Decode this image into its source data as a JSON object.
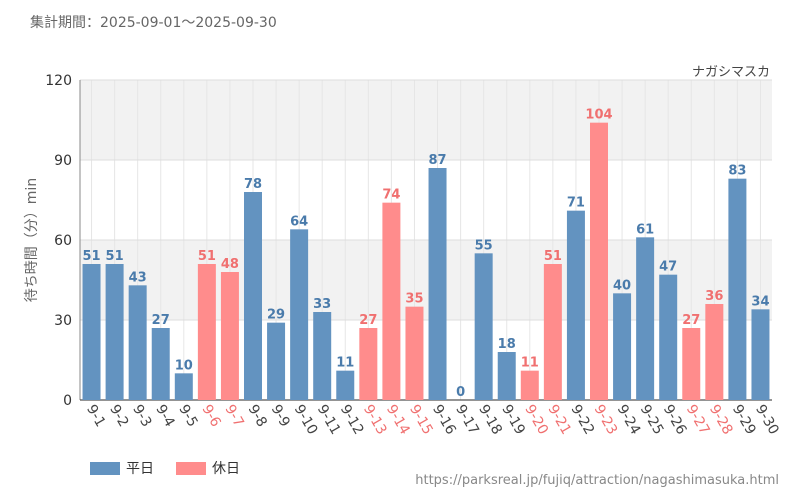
{
  "header": {
    "period": "集計期間：2025-09-01～2025-09-30",
    "attraction": "ナガシマスカ"
  },
  "footer": {
    "url": "https://parksreal.jp/fujiq/attraction/nagashimasuka.html"
  },
  "colors": {
    "weekday": "#6393c0",
    "holiday": "#ff8c8c",
    "weekday_label": "#4a7bab",
    "holiday_label": "#f07070"
  },
  "chart_data": {
    "type": "bar",
    "title": "",
    "xlabel": "",
    "ylabel": "待ち時間（分）min",
    "ylim": [
      0,
      120
    ],
    "yticks": [
      "0",
      "30",
      "60",
      "90",
      "120"
    ],
    "categories": [
      "9-1",
      "9-2",
      "9-3",
      "9-4",
      "9-5",
      "9-6",
      "9-7",
      "9-8",
      "9-9",
      "9-10",
      "9-11",
      "9-12",
      "9-13",
      "9-14",
      "9-15",
      "9-16",
      "9-17",
      "9-18",
      "9-19",
      "9-20",
      "9-21",
      "9-22",
      "9-23",
      "9-24",
      "9-25",
      "9-26",
      "9-27",
      "9-28",
      "9-29",
      "9-30"
    ],
    "values": [
      51,
      51,
      43,
      27,
      10,
      51,
      48,
      78,
      29,
      64,
      33,
      11,
      27,
      74,
      35,
      87,
      0,
      55,
      18,
      11,
      51,
      71,
      104,
      40,
      61,
      47,
      27,
      36,
      83,
      34
    ],
    "holiday": [
      false,
      false,
      false,
      false,
      false,
      true,
      true,
      false,
      false,
      false,
      false,
      false,
      true,
      true,
      true,
      false,
      false,
      false,
      false,
      true,
      true,
      false,
      true,
      false,
      false,
      false,
      true,
      true,
      false,
      false
    ],
    "legend": [
      {
        "name": "平日",
        "key": "weekday"
      },
      {
        "name": "休日",
        "key": "holiday"
      }
    ]
  }
}
